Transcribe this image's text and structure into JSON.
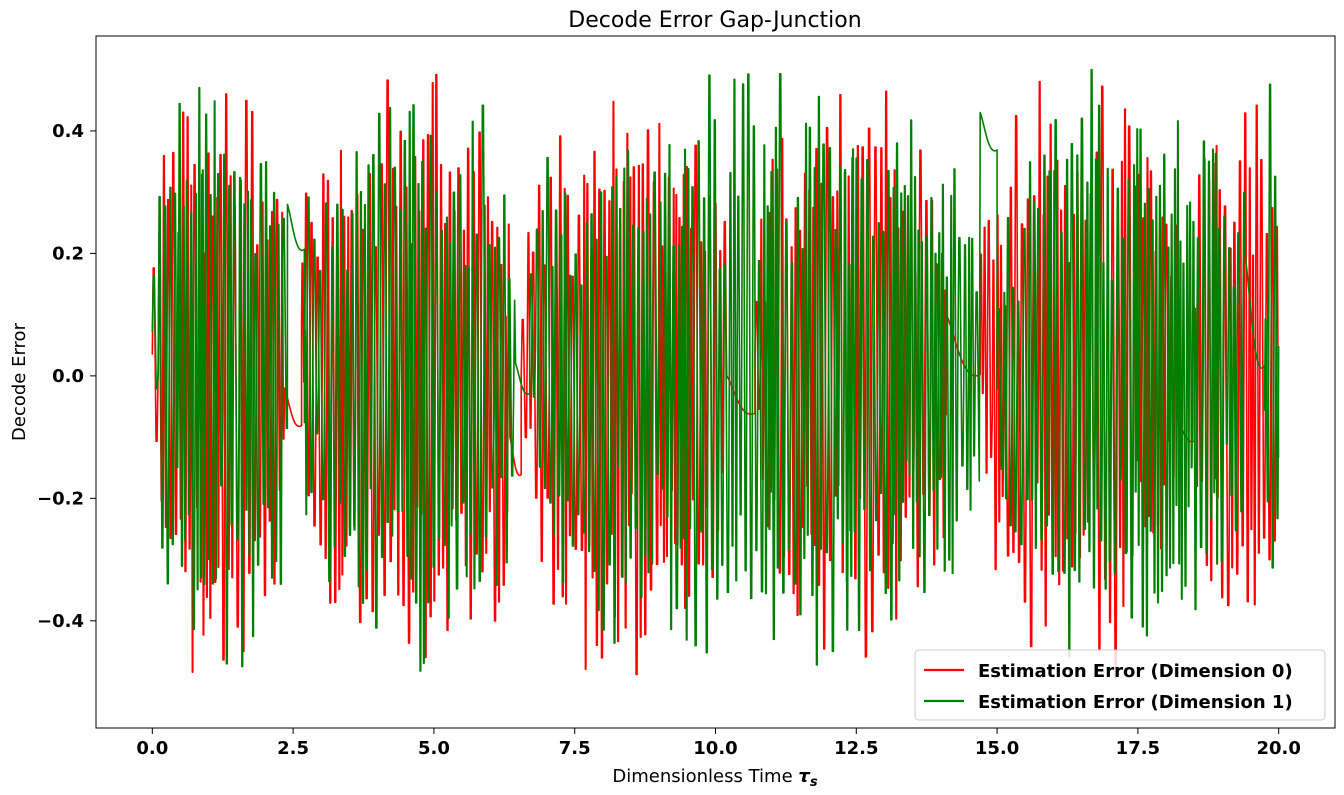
{
  "chart_data": {
    "type": "line",
    "title": "Decode Error Gap-Junction",
    "xlabel": "Dimensionless Time",
    "xlabel_symbol": "τ",
    "xlabel_subscript": "s",
    "ylabel": "Decode Error",
    "xlim": [
      -1.0,
      21.0
    ],
    "ylim": [
      -0.575,
      0.555
    ],
    "xticks": [
      0.0,
      2.5,
      5.0,
      7.5,
      10.0,
      12.5,
      15.0,
      17.5,
      20.0
    ],
    "xtick_labels": [
      "0.0",
      "2.5",
      "5.0",
      "7.5",
      "10.0",
      "12.5",
      "15.0",
      "17.5",
      "20.0"
    ],
    "yticks": [
      -0.4,
      -0.2,
      0.0,
      0.2,
      0.4
    ],
    "ytick_labels": [
      "−0.4",
      "−0.2",
      "0.0",
      "0.2",
      "0.4"
    ],
    "grid": false,
    "legend_position": "bottom-right",
    "series": [
      {
        "name": "Estimation Error (Dimension 0)",
        "color": "#ff0000",
        "x_range": [
          0.0,
          20.0
        ],
        "amplitude_max": 0.5,
        "note_values": "dense oscillation between about -0.5 and 0.5 with quiet segments near 2.4, 6.5, 10.3, 14.4 and 18.3"
      },
      {
        "name": "Estimation Error (Dimension 1)",
        "color": "#008000",
        "x_range": [
          0.0,
          20.0
        ],
        "amplitude_max": 0.5,
        "note_values": "dense oscillation between about -0.52 and 0.5 with quiet segments near 2.5, 6.6, 15.0 and 19.6"
      }
    ]
  }
}
